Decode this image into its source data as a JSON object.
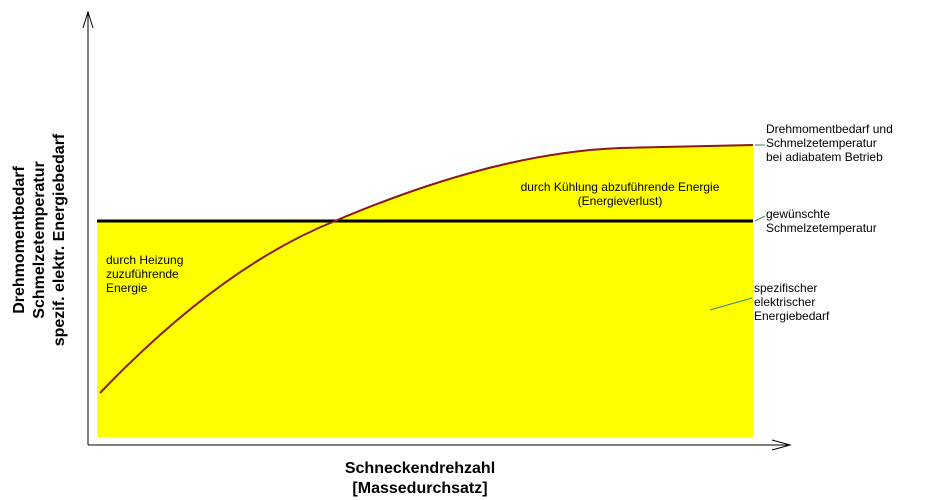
{
  "y_axis_label": [
    "Drehmomentbedarf",
    "Schmelzetemperatur",
    "spezif. elektr. Energiebedarf"
  ],
  "x_axis_label": [
    "Schneckendrehzahl",
    "[Massedurchsatz]"
  ],
  "regions": {
    "cooling": [
      "durch Kühlung abzuführende Energie",
      "(Energieverlust)"
    ],
    "heating": [
      "durch Heizung",
      "zuzuführende",
      "Energie"
    ]
  },
  "labels": {
    "curve": [
      "Drehmomentbedarf und",
      "Schmelzetemperatur",
      "bei adiabatem Betrieb"
    ],
    "line": [
      "gewünschte",
      "Schmelzetemperatur"
    ],
    "area": [
      "spezifischer",
      "elektrischer",
      "Energiebedarf"
    ]
  }
}
